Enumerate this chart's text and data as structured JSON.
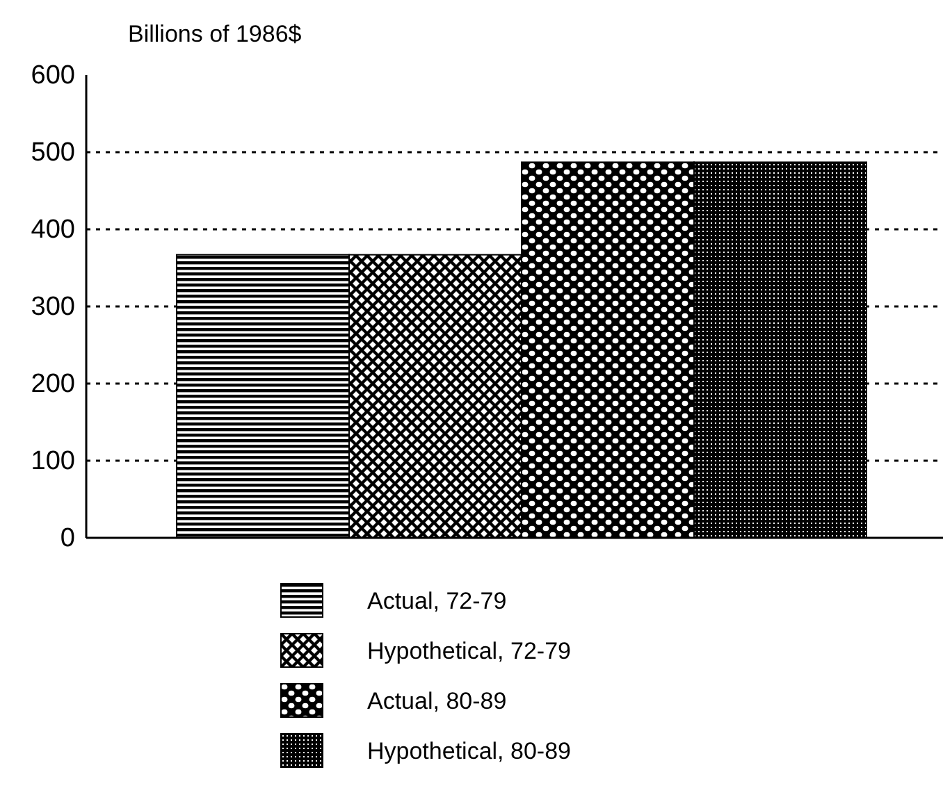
{
  "chart_data": {
    "type": "bar",
    "ylabel": "Billions of 1986$",
    "categories": [
      null
    ],
    "series": [
      {
        "name": "Actual, 72-79",
        "color": "#000000",
        "values": [
          367
        ]
      },
      {
        "name": "Hypothetical, 72-79",
        "color": "#000000",
        "values": [
          367
        ]
      },
      {
        "name": "Actual, 80-89",
        "color": "#000000",
        "values": [
          487
        ]
      },
      {
        "name": "Hypothetical, 80-89",
        "color": "#000000",
        "values": [
          487
        ]
      }
    ],
    "ylim": [
      0,
      600
    ],
    "yticks": [
      0,
      100,
      200,
      300,
      400,
      500,
      600
    ],
    "grid": "y",
    "legend": "bottom"
  }
}
